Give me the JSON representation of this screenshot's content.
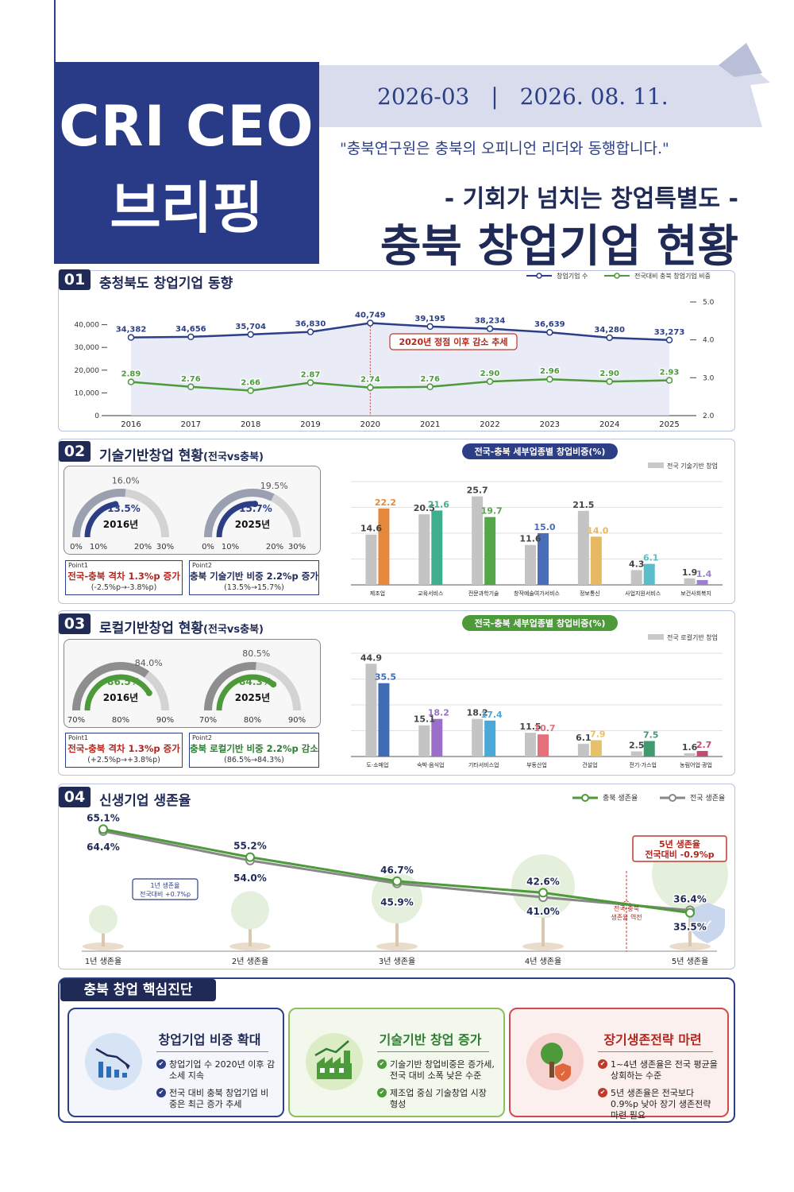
{
  "header": {
    "brand_line1": "CRI CEO",
    "brand_line2": "브리핑",
    "issue_no": "2026-03",
    "separator": "|",
    "date": "2026. 08. 11.",
    "slogan": "\"충북연구원은 충북의 오피니언 리더와 동행합니다.\"",
    "subtitle": "- 기회가 넘치는 창업특별도 -",
    "title": "충북 창업기업 현황"
  },
  "sections": {
    "s1": {
      "num": "01",
      "title": "충청북도 창업기업 동향"
    },
    "s2": {
      "num": "02",
      "title": "기술기반창업 현황",
      "title_small": "(전국vs충북)"
    },
    "s3": {
      "num": "03",
      "title": "로컬기반창업 현황",
      "title_small": "(전국vs충북)"
    },
    "s4": {
      "num": "04",
      "title": "신생기업 생존율"
    }
  },
  "s2_gauges": {
    "g1": {
      "national": "16.0%",
      "chungbuk": "13.5%",
      "year": "2016년",
      "national_val": 16.0,
      "chungbuk_val": 13.5,
      "ticks": [
        "0%",
        "10%",
        "20%",
        "30%"
      ]
    },
    "g2": {
      "national": "19.5%",
      "chungbuk": "15.7%",
      "year": "2025년",
      "national_val": 19.5,
      "chungbuk_val": 15.7,
      "ticks": [
        "0%",
        "10%",
        "20%",
        "30%"
      ]
    },
    "point1": {
      "label": "Point1",
      "head": "전국-충북 격차 1.3%p 증가",
      "sub": "(-2.5%p→-3.8%p)"
    },
    "point2": {
      "label": "Point2",
      "head": "충북 기술기반 비중 2.2%p 증가",
      "sub": "(13.5%→15.7%)"
    }
  },
  "s3_gauges": {
    "g1": {
      "national": "84.0%",
      "chungbuk": "86.5%",
      "year": "2016년",
      "national_val": 84.0,
      "chungbuk_val": 86.5,
      "ticks": [
        "70%",
        "80%",
        "90%"
      ]
    },
    "g2": {
      "national": "80.5%",
      "chungbuk": "84.3%",
      "year": "2025년",
      "national_val": 80.5,
      "chungbuk_val": 84.3,
      "ticks": [
        "70%",
        "80%",
        "90%"
      ]
    },
    "point1": {
      "label": "Point1",
      "head": "전국-충북 격차 1.3%p 증가",
      "sub": "(+2.5%p→+3.8%p)"
    },
    "point2": {
      "label": "Point2",
      "head": "충북 로컬기반 비중 2.2%p 감소",
      "sub": "(86.5%→84.3%)"
    }
  },
  "diagnosis": {
    "title": "충북 창업 핵심진단",
    "cards": [
      {
        "title": "창업기업 비중 확대",
        "items": [
          "창업기업 수 2020년 이후 감소세 지속",
          "전국 대비 충북 창업기업 비중은 최근 증가 추세"
        ],
        "color": "#2c3f86",
        "icon": "declining-bar-chart-icon"
      },
      {
        "title": "기술기반 창업 증가",
        "items": [
          "기술기반 창업비중은 증가세, 전국 대비 소폭 낮은 수준",
          "제조업 중심 기술창업 시장 형성"
        ],
        "color": "#4c9a3a",
        "icon": "factory-growth-icon"
      },
      {
        "title": "장기생존전략 마련",
        "items": [
          "1~4년 생존율은 전국 평균을 상회하는 수준",
          "5년 생존율은 전국보다 0.9%p 낮아 장기 생존전략 마련 필요"
        ],
        "color": "#c0392b",
        "icon": "tree-shield-icon"
      }
    ]
  },
  "chart_data": [
    {
      "id": "s1",
      "type": "line",
      "x": [
        "2016",
        "2017",
        "2018",
        "2019",
        "2020",
        "2021",
        "2022",
        "2023",
        "2024",
        "2025"
      ],
      "series": [
        {
          "name": "창업기업 수",
          "axis": "left",
          "values": [
            34382,
            34656,
            35704,
            36830,
            40749,
            39195,
            38234,
            36639,
            34280,
            33273
          ],
          "labels": [
            "34,382",
            "34,656",
            "35,704",
            "36,830",
            "40,749",
            "39,195",
            "38,234",
            "36,639",
            "34,280",
            "33,273"
          ],
          "color": "#2c3f86"
        },
        {
          "name": "전국대비 충북 창업기업 비중",
          "axis": "right",
          "values": [
            2.89,
            2.76,
            2.66,
            2.87,
            2.74,
            2.76,
            2.9,
            2.96,
            2.9,
            2.93
          ],
          "labels": [
            "2.89",
            "2.76",
            "2.66",
            "2.87",
            "2.74",
            "2.76",
            "2.90",
            "2.96",
            "2.90",
            "2.93"
          ],
          "color": "#4c9a3a"
        }
      ],
      "ylim_left": [
        0,
        50000
      ],
      "yticks_left": [
        "0",
        "10,000",
        "20,000",
        "30,000",
        "40,000"
      ],
      "ylim_right": [
        2.0,
        5.0
      ],
      "yticks_right": [
        "2.0",
        "3.0",
        "4.0",
        "5.0"
      ],
      "annotation": "2020년 정점 이후 감소 추세"
    },
    {
      "id": "s2",
      "type": "bar",
      "title": "전국-충북 세부업종별 창업비중(%)",
      "legend": "전국 기술기반 창업",
      "categories": [
        "제조업",
        "교육서비스",
        "전문과학기술",
        "창작예술여가서비스",
        "정보통신",
        "사업지원서비스",
        "보건사회복지"
      ],
      "series": [
        {
          "values": [
            14.6,
            20.5,
            25.7,
            11.6,
            21.5,
            4.3,
            1.9
          ],
          "labels": [
            "14.6",
            "20.5",
            "25.7",
            "11.6",
            "21.5",
            "4.3",
            "1.9"
          ]
        },
        {
          "values": [
            22.2,
            21.6,
            19.7,
            15.0,
            14.0,
            6.1,
            1.4
          ],
          "labels": [
            "22.2",
            "21.6",
            "19.7",
            "15.0",
            "14.0",
            "6.1",
            "1.4"
          ]
        }
      ],
      "colors": [
        "#e58a3c",
        "#3fae8f",
        "#55a84a",
        "#4a6fb8",
        "#e7b862",
        "#5bbdc9",
        "#9b7fd1"
      ],
      "ylim": [
        0,
        30
      ]
    },
    {
      "id": "s3",
      "type": "bar",
      "title": "전국-충북 세부업종별 창업비중(%)",
      "legend": "전국 로컬기반 창업",
      "categories": [
        "도·소매업",
        "숙박·음식업",
        "기타서비스업",
        "부동산업",
        "건설업",
        "전기·가스업",
        "농림어업·광업"
      ],
      "series": [
        {
          "values": [
            44.9,
            15.1,
            18.2,
            11.5,
            6.1,
            2.5,
            1.6
          ],
          "labels": [
            "44.9",
            "15.1",
            "18.2",
            "11.5",
            "6.1",
            "2.5",
            "1.6"
          ]
        },
        {
          "values": [
            35.5,
            18.2,
            17.4,
            10.7,
            7.9,
            7.5,
            2.7
          ],
          "labels": [
            "35.5",
            "18.2",
            "17.4",
            "10.7",
            "7.9",
            "7.5",
            "2.7"
          ]
        }
      ],
      "colors": [
        "#3f6cb5",
        "#9b6fc9",
        "#4aa9d9",
        "#e3707a",
        "#e5c16a",
        "#3f9a6d",
        "#c44b78"
      ],
      "ylim": [
        0,
        50
      ]
    },
    {
      "id": "s4",
      "type": "line",
      "x": [
        "1년 생존율",
        "2년 생존율",
        "3년 생존율",
        "4년 생존율",
        "5년 생존율"
      ],
      "series": [
        {
          "name": "충북 생존율",
          "values": [
            65.1,
            55.2,
            46.7,
            42.6,
            35.5
          ],
          "labels": [
            "65.1%",
            "55.2%",
            "46.7%",
            "42.6%",
            "35.5%"
          ],
          "color": "#4c9a3a"
        },
        {
          "name": "전국 생존율",
          "values": [
            64.4,
            54.0,
            45.9,
            41.0,
            36.4
          ],
          "labels": [
            "64.4%",
            "54.0%",
            "45.9%",
            "41.0%",
            "36.4%"
          ],
          "color": "#888888"
        }
      ],
      "ylim": [
        25,
        70
      ],
      "annotations": {
        "year1": "1년 생존율 전국대비 +0.7%p",
        "year5": "5년 생존율 전국대비 -0.9%p",
        "reversal": "전국-충북 생존율 역전"
      }
    }
  ]
}
